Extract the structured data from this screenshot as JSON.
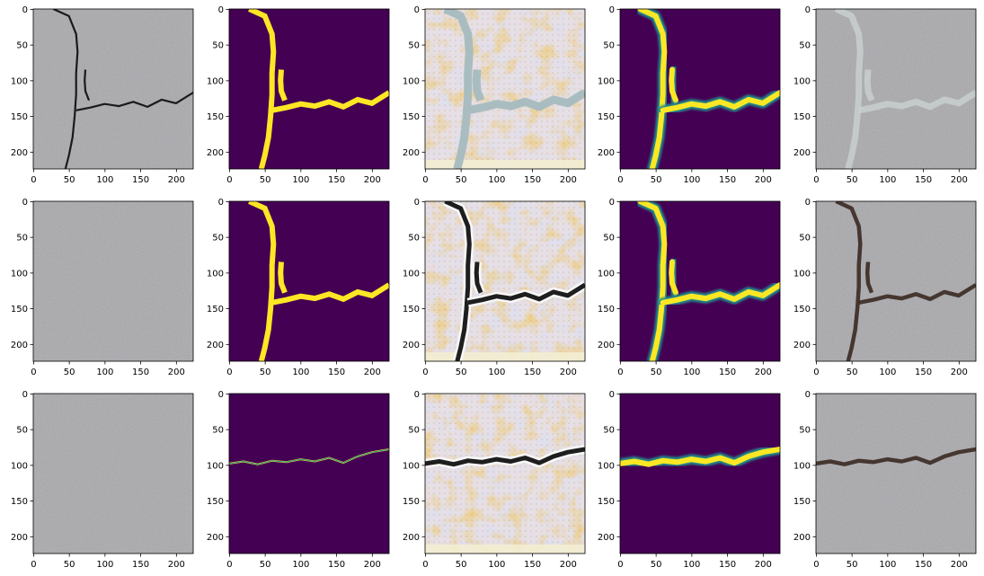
{
  "figure": {
    "title": "",
    "background": "#ffffff"
  },
  "chart_data": {
    "type": "image-grid",
    "rows": 3,
    "cols": 5,
    "image_size": 224,
    "x_ticks": [
      0,
      50,
      100,
      150,
      200
    ],
    "y_ticks": [
      0,
      50,
      100,
      150,
      200
    ],
    "grid": false,
    "legend": "none",
    "panel_kinds": [
      [
        "photo",
        "mask",
        "generated",
        "heatmap",
        "overlay"
      ],
      [
        "photo",
        "mask",
        "generated",
        "heatmap",
        "overlay"
      ],
      [
        "photo",
        "mask",
        "generated",
        "heatmap",
        "overlay"
      ]
    ],
    "crack_paths": {
      "branch": {
        "main": [
          [
            28,
            0
          ],
          [
            50,
            10
          ],
          [
            60,
            35
          ],
          [
            62,
            60
          ],
          [
            60,
            90
          ],
          [
            60,
            120
          ],
          [
            58,
            150
          ],
          [
            55,
            180
          ],
          [
            50,
            205
          ],
          [
            45,
            224
          ]
        ],
        "spur": [
          [
            73,
            85
          ],
          [
            72,
            100
          ],
          [
            73,
            115
          ],
          [
            78,
            128
          ]
        ],
        "horizontal": [
          [
            60,
            142
          ],
          [
            80,
            138
          ],
          [
            100,
            133
          ],
          [
            120,
            136
          ],
          [
            140,
            130
          ],
          [
            160,
            137
          ],
          [
            180,
            127
          ],
          [
            200,
            132
          ],
          [
            224,
            117
          ]
        ]
      },
      "horizontal": {
        "main": [
          [
            0,
            98
          ],
          [
            20,
            95
          ],
          [
            40,
            99
          ],
          [
            60,
            94
          ],
          [
            80,
            96
          ],
          [
            100,
            92
          ],
          [
            120,
            95
          ],
          [
            140,
            90
          ],
          [
            160,
            97
          ],
          [
            180,
            88
          ],
          [
            200,
            82
          ],
          [
            224,
            78
          ]
        ]
      }
    },
    "colors": {
      "viridis_low": "#440154",
      "viridis_high": "#fde725",
      "viridis_mid": "#21918c",
      "concrete": "#a9a9ad",
      "crack_dark": "#1a1a1a"
    }
  }
}
